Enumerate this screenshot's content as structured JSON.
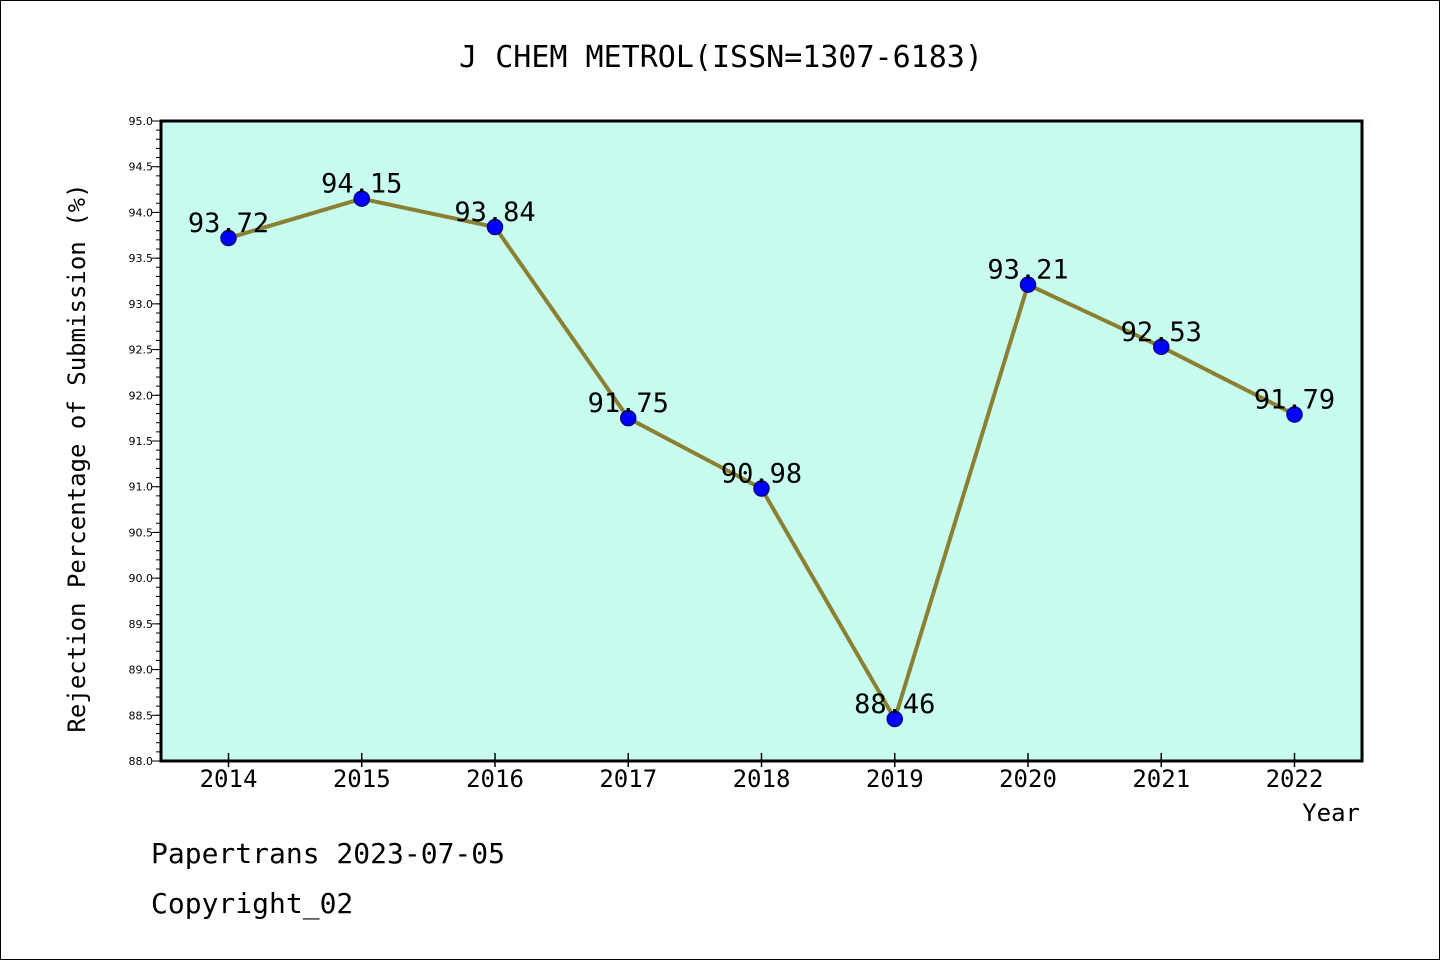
{
  "footer": {
    "line1": "Papertrans 2023-07-05",
    "line2": "Copyright_02"
  },
  "colors": {
    "plot_background": "#c8fcee",
    "line": "#8b8032",
    "marker_fill": "#0000ff",
    "marker_edge": "#00008b"
  },
  "chart_data": {
    "type": "line",
    "title": "J CHEM METROL(ISSN=1307-6183)",
    "xlabel": "Year",
    "ylabel": "Rejection Percentage of Submission (%)",
    "ylim": [
      88.0,
      95.0
    ],
    "yticks": [
      "88.0",
      "88.5",
      "89.0",
      "89.5",
      "90.0",
      "90.5",
      "91.0",
      "91.5",
      "92.0",
      "92.5",
      "93.0",
      "93.5",
      "94.0",
      "94.5",
      "95.0"
    ],
    "categories": [
      "2014",
      "2015",
      "2016",
      "2017",
      "2018",
      "2019",
      "2020",
      "2021",
      "2022"
    ],
    "values": [
      93.72,
      94.15,
      93.84,
      91.75,
      90.98,
      88.46,
      93.21,
      92.53,
      91.79
    ],
    "data_labels": [
      "93.72",
      "94.15",
      "93.84",
      "91.75",
      "90.98",
      "88.46",
      "93.21",
      "92.53",
      "91.79"
    ],
    "grid": false,
    "legend": "none"
  }
}
